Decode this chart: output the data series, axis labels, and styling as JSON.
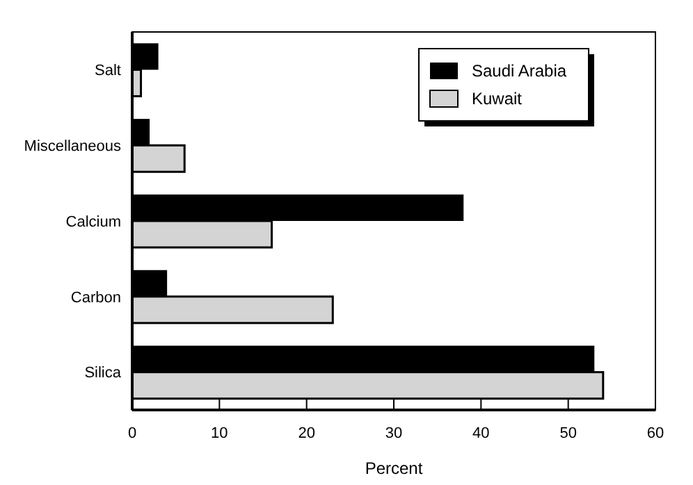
{
  "chart_data": {
    "type": "bar",
    "orientation": "horizontal",
    "xlabel": "Percent",
    "categories": [
      "Salt",
      "Miscellaneous",
      "Calcium",
      "Carbon",
      "Silica"
    ],
    "series": [
      {
        "name": "Saudi Arabia",
        "color": "#000000",
        "values": [
          3,
          2,
          38,
          4,
          53
        ]
      },
      {
        "name": "Kuwait",
        "color": "#d4d4d4",
        "values": [
          1,
          6,
          16,
          23,
          54
        ]
      }
    ],
    "xlim": [
      0,
      60
    ],
    "xticks": [
      0,
      10,
      20,
      30,
      40,
      50,
      60
    ],
    "legend": "top right",
    "grid": false
  }
}
